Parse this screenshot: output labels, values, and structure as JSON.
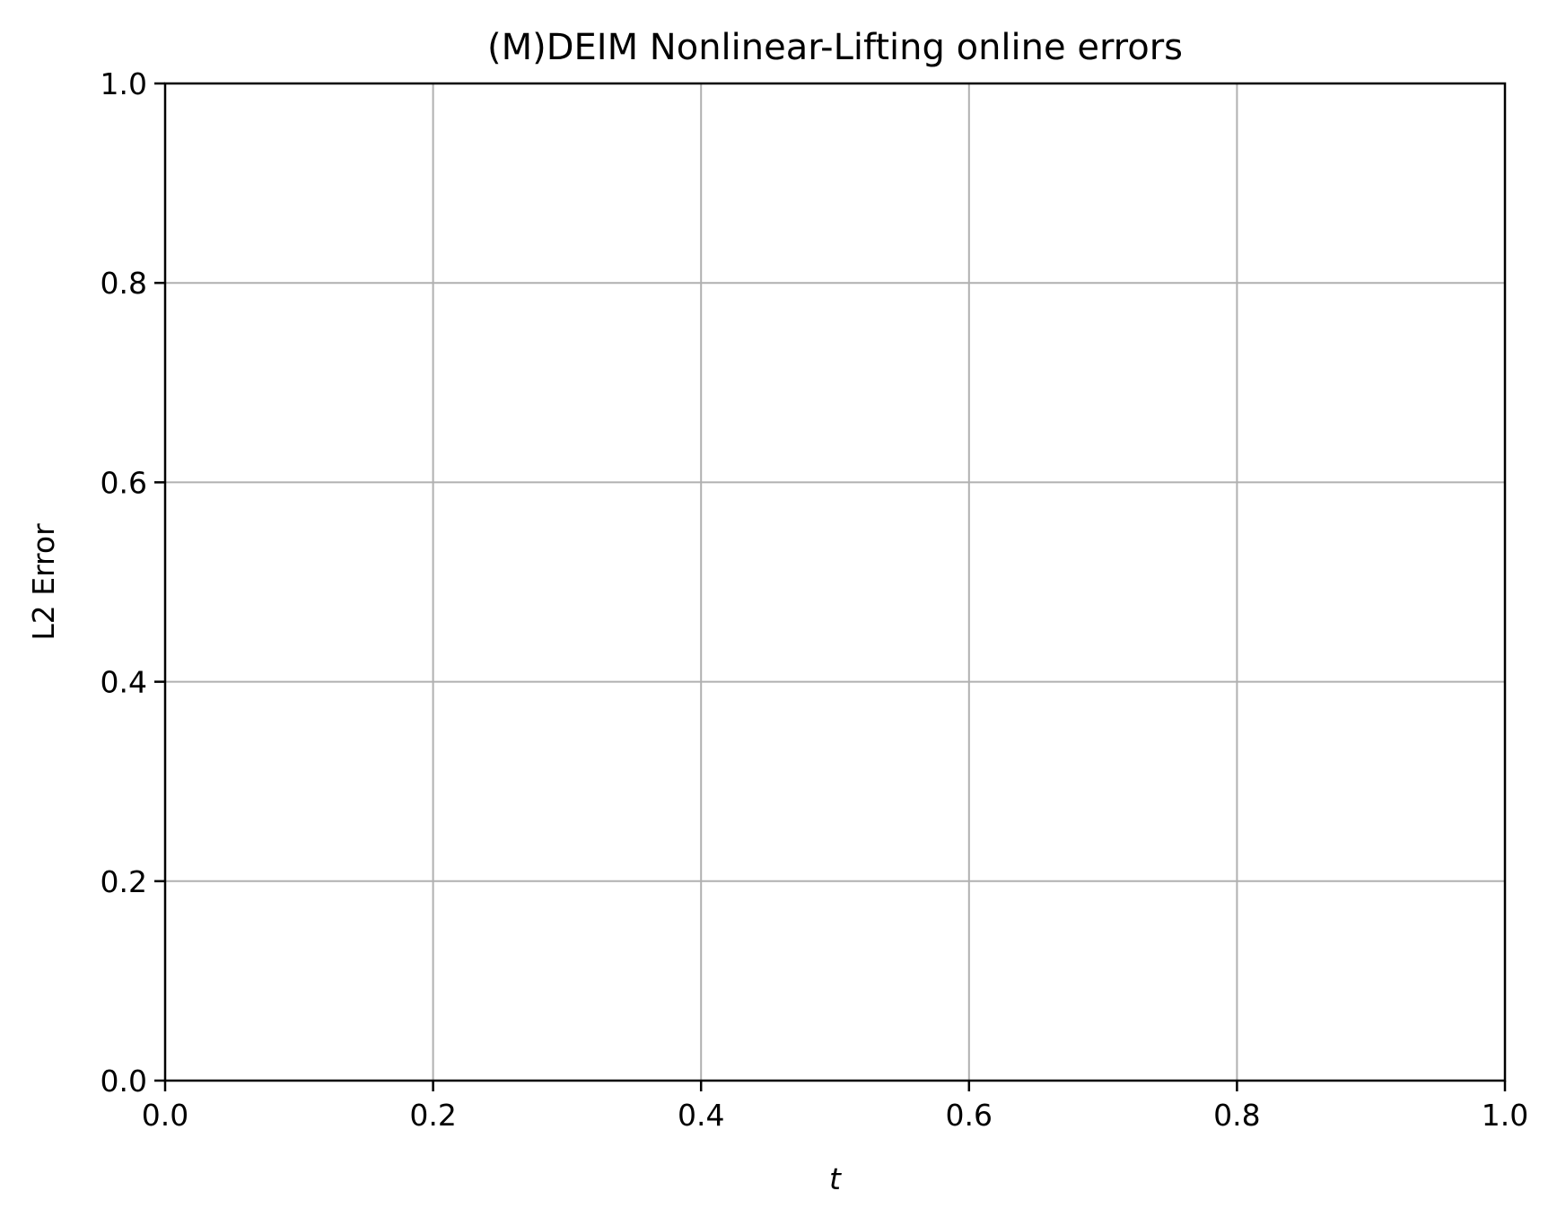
{
  "chart_data": {
    "type": "line",
    "title": "(M)DEIM Nonlinear-Lifting online errors",
    "xlabel": "t",
    "ylabel": "L2 Error",
    "xlim": [
      0.0,
      1.0
    ],
    "ylim": [
      0.0,
      1.0
    ],
    "xticks": [
      "0.0",
      "0.2",
      "0.4",
      "0.6",
      "0.8",
      "1.0"
    ],
    "yticks": [
      "0.0",
      "0.2",
      "0.4",
      "0.6",
      "0.8",
      "1.0"
    ],
    "grid": true,
    "series": []
  },
  "colors": {
    "grid": "#b0b0b0",
    "axis": "#000000",
    "background": "#ffffff"
  }
}
